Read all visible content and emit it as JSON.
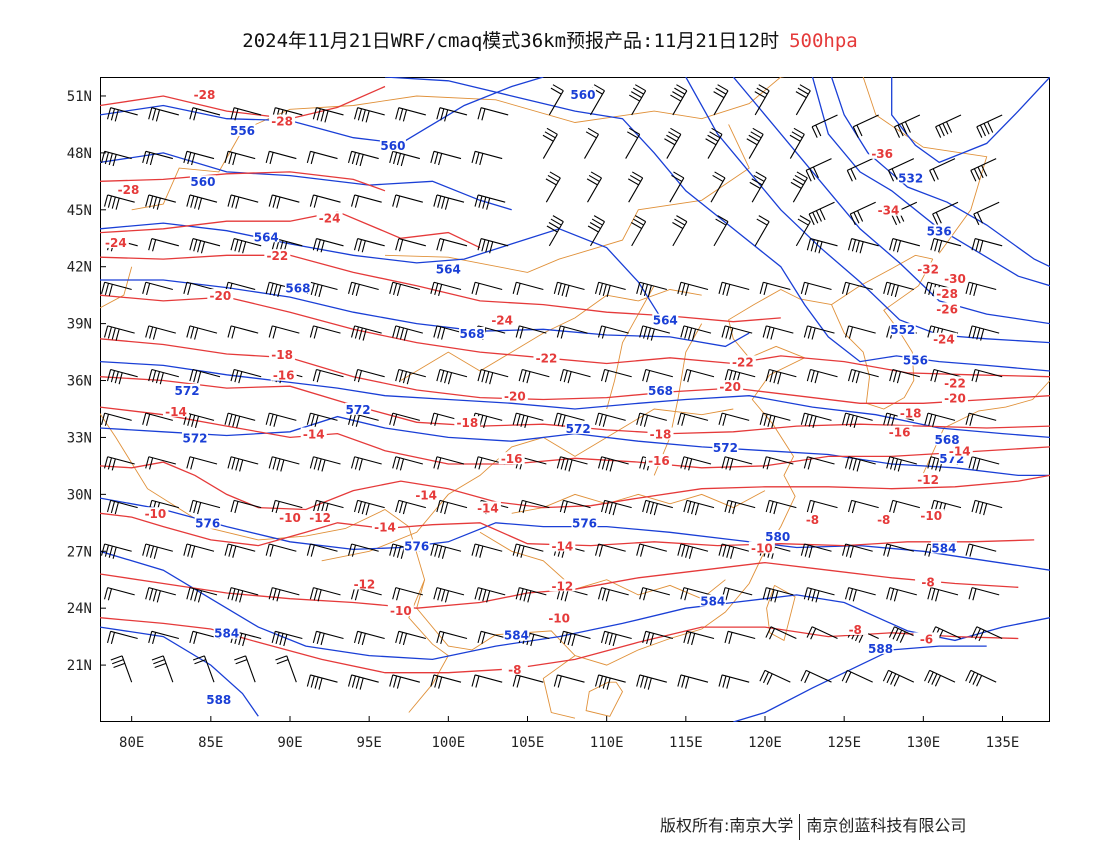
{
  "title": {
    "main": "2024年11月21日WRF/cmaq模式36km预报产品:11月21日12时",
    "level": "500hpa",
    "level_color": "#e53a3a"
  },
  "axes": {
    "lat_labels": [
      "51N",
      "48N",
      "45N",
      "42N",
      "39N",
      "36N",
      "33N",
      "30N",
      "27N",
      "24N",
      "21N"
    ],
    "lat_values": [
      51,
      48,
      45,
      42,
      39,
      36,
      33,
      30,
      27,
      24,
      21
    ],
    "lon_labels": [
      "80E",
      "85E",
      "90E",
      "95E",
      "100E",
      "105E",
      "110E",
      "115E",
      "120E",
      "125E",
      "130E",
      "135E"
    ],
    "lon_values": [
      80,
      85,
      90,
      95,
      100,
      105,
      110,
      115,
      120,
      125,
      130,
      135
    ],
    "lon_range": [
      78,
      138
    ],
    "lat_range": [
      18,
      52
    ]
  },
  "legend_colors": {
    "geopotential_height": "#1a3fd6",
    "temperature": "#e53a3a",
    "boundaries": "#e0913a",
    "wind_barbs": "#000000"
  },
  "height_labels": [
    {
      "text": "560",
      "lon": 108.5,
      "lat": 51
    },
    {
      "text": "556",
      "lon": 87,
      "lat": 49.1
    },
    {
      "text": "560",
      "lon": 96.5,
      "lat": 48.3
    },
    {
      "text": "560",
      "lon": 84.5,
      "lat": 46.4
    },
    {
      "text": "564",
      "lon": 88.5,
      "lat": 43.5
    },
    {
      "text": "564",
      "lon": 100,
      "lat": 41.8
    },
    {
      "text": "568",
      "lon": 90.5,
      "lat": 40.8
    },
    {
      "text": "568",
      "lon": 101.5,
      "lat": 38.4
    },
    {
      "text": "564",
      "lon": 113.7,
      "lat": 39.1
    },
    {
      "text": "572",
      "lon": 83.5,
      "lat": 35.4
    },
    {
      "text": "572",
      "lon": 94.3,
      "lat": 34.4
    },
    {
      "text": "568",
      "lon": 113.4,
      "lat": 35.4
    },
    {
      "text": "572",
      "lon": 84,
      "lat": 32.9
    },
    {
      "text": "572",
      "lon": 108.2,
      "lat": 33.4
    },
    {
      "text": "572",
      "lon": 117.5,
      "lat": 32.4
    },
    {
      "text": "576",
      "lon": 84.8,
      "lat": 28.4
    },
    {
      "text": "576",
      "lon": 108.6,
      "lat": 28.4
    },
    {
      "text": "576",
      "lon": 98,
      "lat": 27.2
    },
    {
      "text": "580",
      "lon": 120.8,
      "lat": 27.7
    },
    {
      "text": "584",
      "lon": 116.7,
      "lat": 24.3
    },
    {
      "text": "584",
      "lon": 86,
      "lat": 22.6
    },
    {
      "text": "584",
      "lon": 104.3,
      "lat": 22.5
    },
    {
      "text": "588",
      "lon": 85.5,
      "lat": 19.1
    },
    {
      "text": "588",
      "lon": 127.3,
      "lat": 21.8
    },
    {
      "text": "584",
      "lon": 131.3,
      "lat": 27.1
    },
    {
      "text": "532",
      "lon": 129.2,
      "lat": 46.6
    },
    {
      "text": "536",
      "lon": 131,
      "lat": 43.8
    },
    {
      "text": "552",
      "lon": 128.7,
      "lat": 38.6
    },
    {
      "text": "556",
      "lon": 129.5,
      "lat": 37
    },
    {
      "text": "568",
      "lon": 131.5,
      "lat": 32.8
    },
    {
      "text": "572",
      "lon": 131.8,
      "lat": 31.8
    }
  ],
  "temperature_labels": [
    {
      "text": "-28",
      "lon": 84.6,
      "lat": 51
    },
    {
      "text": "-28",
      "lon": 89.5,
      "lat": 49.6
    },
    {
      "text": "-28",
      "lon": 79.8,
      "lat": 46
    },
    {
      "text": "-24",
      "lon": 79,
      "lat": 43.2
    },
    {
      "text": "-24",
      "lon": 92.5,
      "lat": 44.5
    },
    {
      "text": "-22",
      "lon": 89.2,
      "lat": 42.5
    },
    {
      "text": "-20",
      "lon": 85.6,
      "lat": 40.4
    },
    {
      "text": "-24",
      "lon": 103.4,
      "lat": 39.1
    },
    {
      "text": "-22",
      "lon": 106.2,
      "lat": 37.1
    },
    {
      "text": "-22",
      "lon": 118.6,
      "lat": 36.9
    },
    {
      "text": "-20",
      "lon": 104.2,
      "lat": 35.1
    },
    {
      "text": "-20",
      "lon": 117.8,
      "lat": 35.6
    },
    {
      "text": "-18",
      "lon": 89.5,
      "lat": 37.3
    },
    {
      "text": "-16",
      "lon": 89.6,
      "lat": 36.2
    },
    {
      "text": "-18",
      "lon": 101.2,
      "lat": 33.7
    },
    {
      "text": "-18",
      "lon": 113.4,
      "lat": 33.1
    },
    {
      "text": "-16",
      "lon": 113.3,
      "lat": 31.7
    },
    {
      "text": "-16",
      "lon": 104,
      "lat": 31.8
    },
    {
      "text": "-14",
      "lon": 82.8,
      "lat": 34.3
    },
    {
      "text": "-14",
      "lon": 91.5,
      "lat": 33.1
    },
    {
      "text": "-14",
      "lon": 98.6,
      "lat": 29.9
    },
    {
      "text": "-14",
      "lon": 102.5,
      "lat": 29.2
    },
    {
      "text": "-14",
      "lon": 96,
      "lat": 28.2
    },
    {
      "text": "-14",
      "lon": 107.2,
      "lat": 27.2
    },
    {
      "text": "-12",
      "lon": 94.7,
      "lat": 25.2
    },
    {
      "text": "-12",
      "lon": 107.2,
      "lat": 25.1
    },
    {
      "text": "-10",
      "lon": 81.5,
      "lat": 28.9
    },
    {
      "text": "-10",
      "lon": 90,
      "lat": 28.7
    },
    {
      "text": "-12",
      "lon": 91.9,
      "lat": 28.7
    },
    {
      "text": "-10",
      "lon": 97,
      "lat": 23.8
    },
    {
      "text": "-10",
      "lon": 107,
      "lat": 23.4
    },
    {
      "text": "-10",
      "lon": 119.8,
      "lat": 27.1
    },
    {
      "text": "-8",
      "lon": 104.2,
      "lat": 20.7
    },
    {
      "text": "-8",
      "lon": 123,
      "lat": 28.6
    },
    {
      "text": "-8",
      "lon": 127.5,
      "lat": 28.6
    },
    {
      "text": "-10",
      "lon": 130.5,
      "lat": 28.8
    },
    {
      "text": "-8",
      "lon": 130.3,
      "lat": 25.3
    },
    {
      "text": "-8",
      "lon": 125.7,
      "lat": 22.8
    },
    {
      "text": "-6",
      "lon": 130.2,
      "lat": 22.3
    },
    {
      "text": "-36",
      "lon": 127.4,
      "lat": 47.9
    },
    {
      "text": "-34",
      "lon": 127.8,
      "lat": 44.9
    },
    {
      "text": "-32",
      "lon": 130.3,
      "lat": 41.8
    },
    {
      "text": "-30",
      "lon": 132,
      "lat": 41.3
    },
    {
      "text": "-28",
      "lon": 131.5,
      "lat": 40.5
    },
    {
      "text": "-26",
      "lon": 131.5,
      "lat": 39.7
    },
    {
      "text": "-24",
      "lon": 131.3,
      "lat": 38.1
    },
    {
      "text": "-22",
      "lon": 132,
      "lat": 35.8
    },
    {
      "text": "-20",
      "lon": 132,
      "lat": 35
    },
    {
      "text": "-18",
      "lon": 129.2,
      "lat": 34.2
    },
    {
      "text": "-16",
      "lon": 128.5,
      "lat": 33.2
    },
    {
      "text": "-14",
      "lon": 132.3,
      "lat": 32.2
    },
    {
      "text": "-12",
      "lon": 130.3,
      "lat": 30.7
    }
  ],
  "footer": {
    "left": "版权所有:南京大学",
    "right": "南京创蓝科技有限公司"
  }
}
